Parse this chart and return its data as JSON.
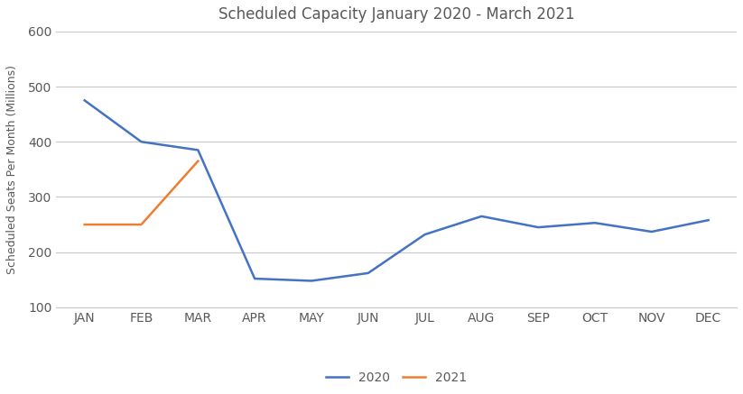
{
  "title": "Scheduled Capacity January 2020 - March 2021",
  "ylabel": "Scheduled Seats Per Month (Millions)",
  "categories": [
    "JAN",
    "FEB",
    "MAR",
    "APR",
    "MAY",
    "JUN",
    "JUL",
    "AUG",
    "SEP",
    "OCT",
    "NOV",
    "DEC"
  ],
  "series_2020": {
    "label": "2020",
    "color": "#4472C4",
    "values": [
      475,
      400,
      385,
      152,
      148,
      162,
      232,
      265,
      245,
      253,
      237,
      258
    ]
  },
  "series_2021": {
    "label": "2021",
    "color": "#ED7D31",
    "values": [
      250,
      250,
      365,
      null,
      null,
      null,
      null,
      null,
      null,
      null,
      null,
      null
    ]
  },
  "ylim": [
    100,
    600
  ],
  "yticks": [
    100,
    200,
    300,
    400,
    500,
    600
  ],
  "background_color": "#ffffff",
  "grid_color": "#c8c8c8",
  "title_fontsize": 12,
  "axis_label_fontsize": 9,
  "tick_fontsize": 10,
  "legend_fontsize": 10,
  "line_width": 1.8,
  "text_color": "#595959"
}
